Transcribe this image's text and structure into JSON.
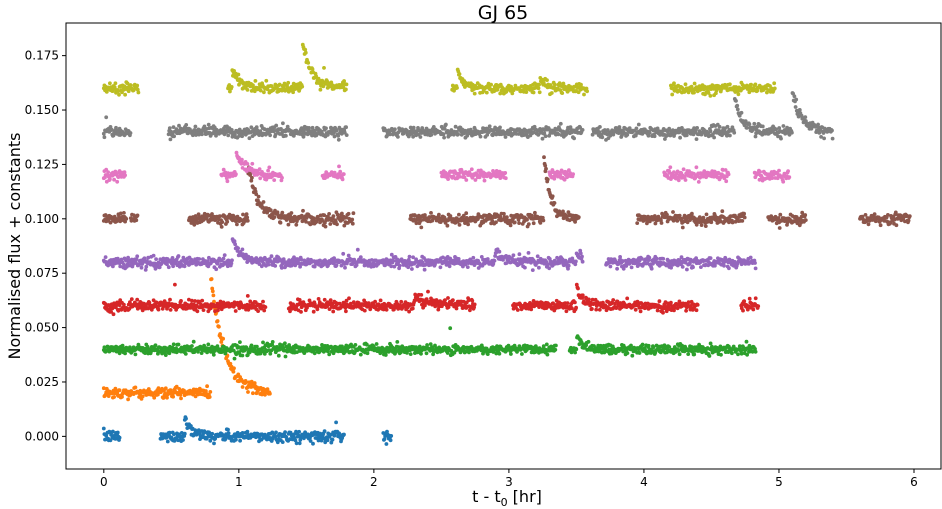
{
  "chart_data": {
    "type": "scatter",
    "title": "GJ 65",
    "xlabel": "t - t",
    "xlabel_sub": "0",
    "xlabel_unit": " [hr]",
    "ylabel": "Normalised flux + constants",
    "xlim": [
      -0.28,
      6.2
    ],
    "ylim": [
      -0.015,
      0.19
    ],
    "xticks": [
      0,
      1,
      2,
      3,
      4,
      5,
      6
    ],
    "xtick_labels": [
      "0",
      "1",
      "2",
      "3",
      "4",
      "5",
      "6"
    ],
    "yticks": [
      0.0,
      0.025,
      0.05,
      0.075,
      0.1,
      0.125,
      0.15,
      0.175
    ],
    "ytick_labels": [
      "0.000",
      "0.025",
      "0.050",
      "0.075",
      "0.100",
      "0.125",
      "0.150",
      "0.175"
    ],
    "grid": false,
    "legend": "none",
    "series": [
      {
        "color": "#1f77b4",
        "offset": 0.0,
        "noise": 0.0013,
        "segments": [
          [
            0.0,
            0.12
          ],
          [
            0.42,
            0.6
          ],
          [
            0.6,
            1.78
          ],
          [
            2.07,
            2.13
          ]
        ],
        "flares": [
          {
            "t": 0.6,
            "amp": 0.009,
            "decay": 0.05
          }
        ]
      },
      {
        "color": "#ff7f0e",
        "offset": 0.02,
        "noise": 0.0012,
        "segments": [
          [
            0.0,
            0.78
          ],
          [
            0.78,
            1.23
          ]
        ],
        "flares": [
          {
            "t": 0.79,
            "amp": 0.055,
            "decay": 0.1
          }
        ]
      },
      {
        "color": "#2ca02c",
        "offset": 0.04,
        "noise": 0.0011,
        "segments": [
          [
            0.0,
            3.35
          ],
          [
            3.45,
            4.83
          ]
        ],
        "flares": [
          {
            "t": 3.5,
            "amp": 0.006,
            "decay": 0.06
          }
        ]
      },
      {
        "color": "#d62728",
        "offset": 0.06,
        "noise": 0.0012,
        "segments": [
          [
            0.0,
            1.2
          ],
          [
            1.37,
            2.75
          ],
          [
            3.03,
            4.4
          ],
          [
            4.72,
            4.85
          ]
        ],
        "flares": [
          {
            "t": 2.3,
            "amp": 0.004,
            "decay": 0.15
          },
          {
            "t": 3.5,
            "amp": 0.008,
            "decay": 0.05
          }
        ]
      },
      {
        "color": "#9467bd",
        "offset": 0.08,
        "noise": 0.0012,
        "segments": [
          [
            0.0,
            3.55
          ],
          [
            3.72,
            4.83
          ]
        ],
        "flares": [
          {
            "t": 0.95,
            "amp": 0.012,
            "decay": 0.06
          },
          {
            "t": 2.9,
            "amp": 0.006,
            "decay": 0.06
          },
          {
            "t": 3.5,
            "amp": 0.004,
            "decay": 0.08
          }
        ]
      },
      {
        "color": "#8c564b",
        "offset": 0.1,
        "noise": 0.0012,
        "segments": [
          [
            0.0,
            0.17
          ],
          [
            0.2,
            0.25
          ],
          [
            0.63,
            1.07
          ],
          [
            1.07,
            1.85
          ],
          [
            2.27,
            3.27
          ],
          [
            3.27,
            3.52
          ],
          [
            3.95,
            4.75
          ],
          [
            4.92,
            5.2
          ],
          [
            5.6,
            5.97
          ]
        ],
        "flares": [
          {
            "t": 1.07,
            "amp": 0.024,
            "decay": 0.07
          },
          {
            "t": 3.26,
            "amp": 0.028,
            "decay": 0.05
          }
        ]
      },
      {
        "color": "#e377c2",
        "offset": 0.12,
        "noise": 0.0012,
        "segments": [
          [
            0.0,
            0.16
          ],
          [
            0.87,
            1.32
          ],
          [
            1.62,
            1.78
          ],
          [
            2.5,
            2.98
          ],
          [
            3.3,
            3.48
          ],
          [
            4.15,
            4.63
          ],
          [
            4.82,
            5.08
          ]
        ],
        "flares": [
          {
            "t": 0.98,
            "amp": 0.01,
            "decay": 0.08
          }
        ]
      },
      {
        "color": "#7f7f7f",
        "offset": 0.14,
        "noise": 0.0012,
        "segments": [
          [
            0.0,
            0.2
          ],
          [
            0.48,
            1.8
          ],
          [
            2.07,
            3.55
          ],
          [
            3.62,
            5.4
          ]
        ],
        "flares": [
          {
            "t": 4.67,
            "amp": 0.015,
            "decay": 0.06
          },
          {
            "t": 5.1,
            "amp": 0.018,
            "decay": 0.07
          }
        ]
      },
      {
        "color": "#bcbd22",
        "offset": 0.16,
        "noise": 0.0012,
        "segments": [
          [
            0.0,
            0.26
          ],
          [
            0.92,
            1.8
          ],
          [
            2.58,
            3.58
          ],
          [
            4.2,
            4.97
          ]
        ],
        "flares": [
          {
            "t": 0.95,
            "amp": 0.009,
            "decay": 0.06
          },
          {
            "t": 1.47,
            "amp": 0.021,
            "decay": 0.07
          },
          {
            "t": 1.85,
            "amp": 0.008,
            "decay": 0.05
          },
          {
            "t": 2.62,
            "amp": 0.007,
            "decay": 0.05
          },
          {
            "t": 3.23,
            "amp": 0.004,
            "decay": 0.06
          }
        ]
      }
    ]
  }
}
